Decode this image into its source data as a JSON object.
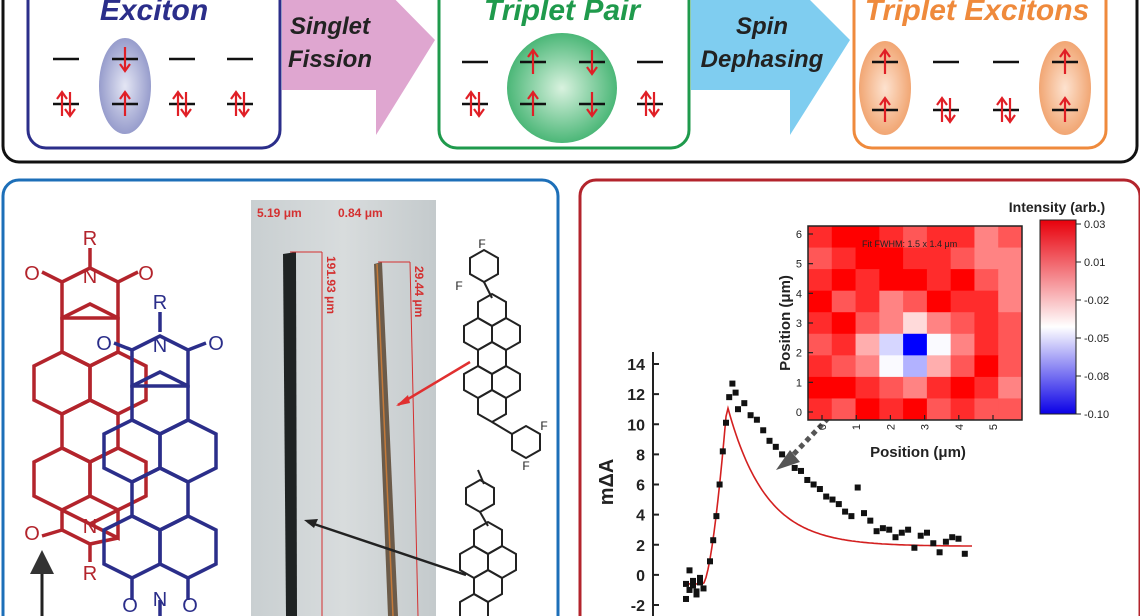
{
  "top_panel": {
    "stage_exciton": "Exciton",
    "arrow_singlet_fission": [
      "Singlet",
      "Fission"
    ],
    "stage_triplet_pair": "Triplet Pair",
    "arrow_spin_dephasing": [
      "Spin",
      "Dephasing"
    ],
    "stage_triplet_excitons": "Triplet Excitons"
  },
  "left_panel": {
    "substituent_red_top": "R",
    "substituent_blue_top": "R",
    "substituent_red_bottom": "R",
    "oxygen": "O",
    "nitrogen": "N",
    "fluorine": "F",
    "crystal_width_1": "5.19 μm",
    "crystal_length_1": "191.93 μm",
    "crystal_width_2": "0.84 μm",
    "crystal_length_2": "29.44 μm"
  },
  "right_panel": {
    "main_plot": {
      "ylabel": "mΔA",
      "yticks": [
        "14",
        "12",
        "10",
        "8",
        "6",
        "4",
        "2",
        "0",
        "-2"
      ]
    },
    "heatmap": {
      "annotation": "Fit FWHM: 1.5 x 1.4 μm",
      "xlabel": "Position (μm)",
      "ylabel": "Position (μm)",
      "xticks": [
        "0",
        "1",
        "2",
        "3",
        "4",
        "5"
      ],
      "yticks": [
        "0",
        "1",
        "2",
        "3",
        "4",
        "5",
        "6"
      ],
      "colorbar_title": "Intensity (arb.)",
      "colorbar_ticks": [
        "0.03",
        "0.01",
        "-0.02",
        "-0.05",
        "-0.08",
        "-0.10"
      ]
    }
  },
  "chart_data": [
    {
      "type": "scatter",
      "ylabel": "mΔA",
      "ylim": [
        -2,
        14
      ],
      "points_y": [
        -0.6,
        -1.0,
        -0.4,
        -1.3,
        -0.2,
        -0.9,
        -1.6,
        0.3,
        -0.7,
        -1.1,
        -0.5,
        0.9,
        2.3,
        3.9,
        6.0,
        8.2,
        10.1,
        11.8,
        12.7,
        12.1,
        11.0,
        11.4,
        10.6,
        10.3,
        9.6,
        8.9,
        8.5,
        8.0,
        7.7,
        7.1,
        6.9,
        6.3,
        6.0,
        5.7,
        5.2,
        5.0,
        4.7,
        4.2,
        3.9,
        5.8,
        4.1,
        3.6,
        2.9,
        3.1,
        3.0,
        2.5,
        2.8,
        3.0,
        1.8,
        2.6,
        2.8,
        2.1,
        1.5,
        2.2,
        2.5,
        2.4,
        1.4
      ],
      "fit_line_color": "#d32020",
      "grid": false
    },
    {
      "type": "heatmap",
      "xlabel": "Position (μm)",
      "ylabel": "Position (μm)",
      "xlim": [
        0,
        6.5
      ],
      "ylim": [
        0,
        6.5
      ],
      "colorbar_range": [
        -0.1,
        0.03
      ],
      "values": [
        [
          0.02,
          0.03,
          0.03,
          0.02,
          0.01,
          0.02,
          0.02,
          0.0,
          0.01
        ],
        [
          0.01,
          0.02,
          0.03,
          0.03,
          0.02,
          0.02,
          0.01,
          0.0,
          0.0
        ],
        [
          0.02,
          0.03,
          0.02,
          0.03,
          0.03,
          0.02,
          0.03,
          0.01,
          0.0
        ],
        [
          0.03,
          0.01,
          0.02,
          0.0,
          0.01,
          0.03,
          0.02,
          0.02,
          0.0
        ],
        [
          0.02,
          0.03,
          0.01,
          0.0,
          -0.02,
          0.0,
          0.01,
          0.02,
          0.01
        ],
        [
          0.01,
          0.02,
          -0.01,
          -0.04,
          -0.1,
          -0.03,
          0.0,
          0.02,
          0.01
        ],
        [
          0.02,
          0.01,
          0.0,
          -0.03,
          -0.05,
          -0.01,
          0.01,
          0.03,
          0.01
        ],
        [
          0.03,
          0.03,
          0.02,
          0.01,
          0.0,
          0.02,
          0.03,
          0.02,
          0.0
        ],
        [
          0.02,
          0.01,
          0.03,
          0.02,
          0.03,
          0.01,
          0.02,
          0.01,
          0.01
        ]
      ]
    }
  ]
}
